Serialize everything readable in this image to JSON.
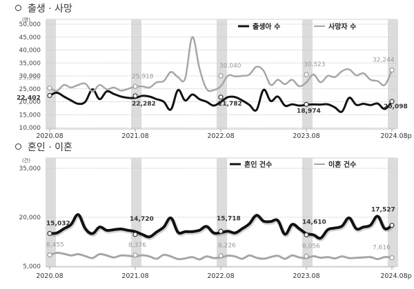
{
  "sections": [
    {
      "title": "출생 · 사망"
    },
    {
      "title": "혼인 · 이혼"
    }
  ],
  "colors": {
    "dark_series": "#111111",
    "light_series": "#a6a6a6",
    "band": "#dcdcdc",
    "grid": "#c8c8c8"
  },
  "chart_data": [
    {
      "type": "line",
      "title": "출생 · 사망",
      "unit": "(명)",
      "ylim": [
        10000,
        50000
      ],
      "yticks": [
        "50,000",
        "45,000",
        "40,000",
        "35,000",
        "30,000",
        "25,000",
        "20,000",
        "15,000",
        "10,000"
      ],
      "xticks": [
        "2020.08",
        "2021.08",
        "2022.08",
        "2023.08",
        "2024.08p"
      ],
      "grid": true,
      "legend_position": "top-right",
      "series": [
        {
          "name": "출생아 수",
          "labels": [
            {
              "x": "2020.08",
              "value": 22402,
              "text": "22,402"
            },
            {
              "x": "2021.08",
              "value": 22282,
              "text": "22,282"
            },
            {
              "x": "2022.08",
              "value": 21782,
              "text": "21,782"
            },
            {
              "x": "2023.08",
              "value": 18974,
              "text": "18,974"
            },
            {
              "x": "2024.08p",
              "value": 20098,
              "text": "20,098"
            }
          ],
          "values": [
            22402,
            23500,
            22000,
            20500,
            19200,
            20000,
            24800,
            21000,
            24000,
            23000,
            22000,
            21500,
            21500,
            22282,
            22000,
            21000,
            20000,
            17000,
            24500,
            20500,
            22800,
            21000,
            20000,
            18500,
            20000,
            21782,
            21800,
            20500,
            18800,
            16800,
            24600,
            20300,
            22000,
            18500,
            19000,
            18500,
            18800,
            18974,
            18900,
            19000,
            17800,
            16200,
            21500,
            18800,
            19200,
            18700,
            19300,
            17200,
            20098
          ]
        },
        {
          "name": "사망자 수",
          "labels": [
            {
              "x": "2020.08",
              "value": 25289,
              "text": "25,289"
            },
            {
              "x": "2021.08",
              "value": 25918,
              "text": "25,918"
            },
            {
              "x": "2022.08",
              "value": 30040,
              "text": "30,040"
            },
            {
              "x": "2023.08",
              "value": 30523,
              "text": "30,523"
            },
            {
              "x": "2024.08p",
              "value": 32244,
              "text": "32,244"
            }
          ],
          "values": [
            25289,
            24200,
            26500,
            25500,
            26500,
            27000,
            24000,
            26500,
            24800,
            25500,
            24300,
            25000,
            25800,
            25918,
            25500,
            27500,
            28000,
            31500,
            29500,
            29000,
            45000,
            33000,
            25000,
            24500,
            26000,
            30040,
            29800,
            30000,
            30500,
            33500,
            32000,
            26500,
            28500,
            26800,
            28500,
            26000,
            27500,
            30523,
            27500,
            30000,
            29500,
            31800,
            32500,
            30200,
            31000,
            28500,
            28000,
            26500,
            32244
          ]
        }
      ]
    },
    {
      "type": "line",
      "title": "혼인 · 이혼",
      "unit": "(건)",
      "ylim": [
        5000,
        35000
      ],
      "yticks": [
        "35,000",
        "20,000",
        "5,000"
      ],
      "xticks": [
        "2020.08",
        "2021.08",
        "2022.08",
        "2023.08",
        "2024.08p"
      ],
      "grid": true,
      "legend_position": "top-right",
      "series": [
        {
          "name": "혼인 건수",
          "labels": [
            {
              "x": "2020.08",
              "value": 15032,
              "text": "15,032"
            },
            {
              "x": "2021.08",
              "value": 14720,
              "text": "14,720"
            },
            {
              "x": "2022.08",
              "value": 15718,
              "text": "15,718"
            },
            {
              "x": "2023.08",
              "value": 14610,
              "text": "14,610"
            },
            {
              "x": "2024.08p",
              "value": 17527,
              "text": "17,527"
            }
          ],
          "values": [
            15032,
            15200,
            16500,
            17800,
            20800,
            16500,
            15000,
            17000,
            16000,
            16200,
            16400,
            16000,
            15600,
            14720,
            14000,
            15500,
            17000,
            19800,
            15400,
            15600,
            15600,
            16000,
            17200,
            15200,
            15300,
            15718,
            15200,
            16500,
            18000,
            20600,
            18800,
            18700,
            19000,
            14800,
            17800,
            16500,
            15000,
            14610,
            13600,
            16200,
            16700,
            17300,
            19800,
            16500,
            17000,
            17600,
            20300,
            16500,
            17527
          ]
        },
        {
          "name": "이혼 건수",
          "labels": [
            {
              "x": "2020.08",
              "value": 8455,
              "text": "8,455"
            },
            {
              "x": "2021.08",
              "value": 8376,
              "text": "8,376"
            },
            {
              "x": "2022.08",
              "value": 8226,
              "text": "8,226"
            },
            {
              "x": "2023.08",
              "value": 8056,
              "text": "8,056"
            },
            {
              "x": "2024.08p",
              "value": 7616,
              "text": "7,616"
            }
          ],
          "values": [
            8455,
            9100,
            8800,
            8300,
            8700,
            8100,
            7500,
            8700,
            8300,
            7700,
            8300,
            8200,
            8000,
            8376,
            8000,
            7300,
            8500,
            8000,
            7200,
            7400,
            7800,
            7100,
            8000,
            7500,
            7700,
            8226,
            8000,
            7300,
            8300,
            7600,
            7300,
            7800,
            8200,
            7300,
            8300,
            7700,
            7500,
            8056,
            7600,
            7800,
            7400,
            8000,
            7500,
            7600,
            7700,
            7800,
            7200,
            7800,
            7616
          ]
        }
      ]
    }
  ]
}
